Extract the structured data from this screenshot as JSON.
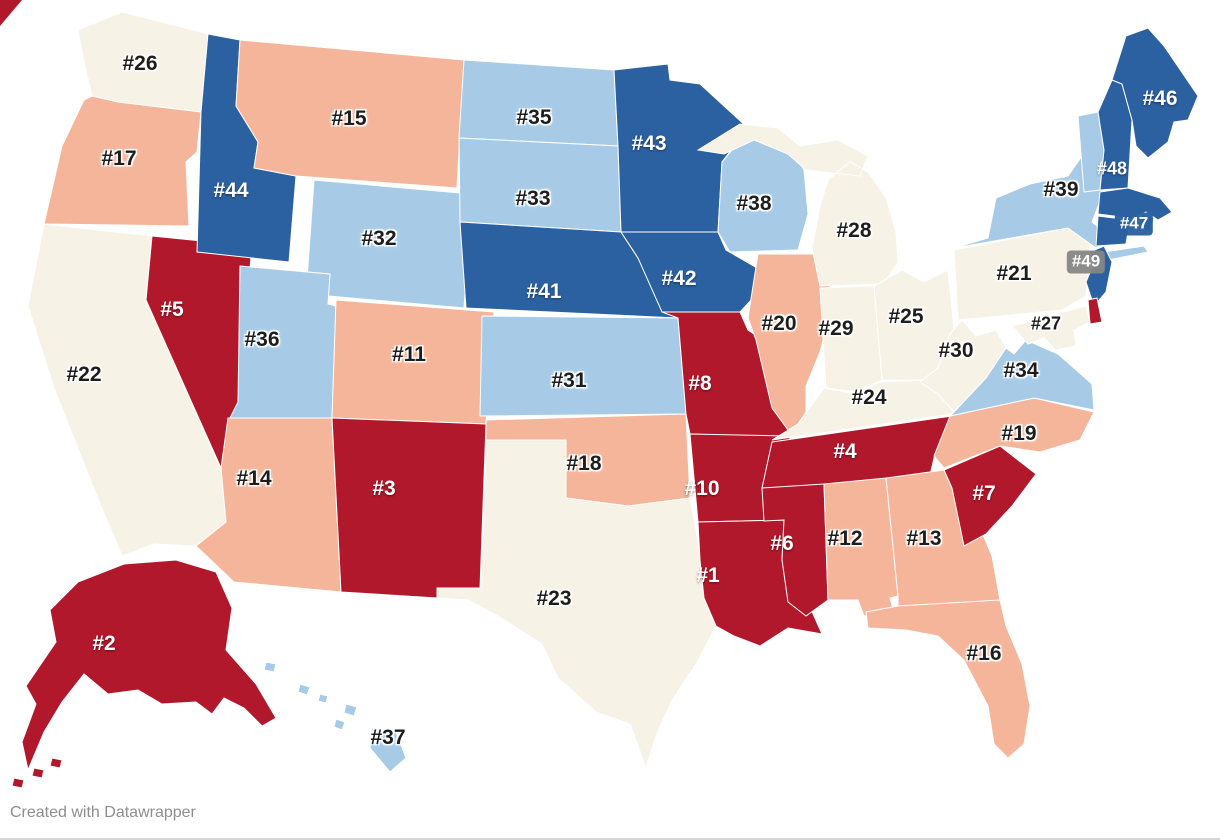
{
  "map": {
    "type": "choropleth-us-states",
    "palette": {
      "dark_red": "#b2182b",
      "salmon": "#f5b59a",
      "cream": "#f7f2e6",
      "light_blue": "#a7cbe7",
      "dark_blue": "#2c61a1",
      "border": "#ffffff",
      "label_dark": "#1d1d1d",
      "label_light": "#ffffff"
    },
    "states": [
      {
        "id": "WA",
        "name": "Washington",
        "label": "#26",
        "band": "cream"
      },
      {
        "id": "OR",
        "name": "Oregon",
        "label": "#17",
        "band": "salmon"
      },
      {
        "id": "CA",
        "name": "California",
        "label": "#22",
        "band": "cream"
      },
      {
        "id": "NV",
        "name": "Nevada",
        "label": "#5",
        "band": "dark_red"
      },
      {
        "id": "ID",
        "name": "Idaho",
        "label": "#44",
        "band": "dark_blue"
      },
      {
        "id": "MT",
        "name": "Montana",
        "label": "#15",
        "band": "salmon"
      },
      {
        "id": "WY",
        "name": "Wyoming",
        "label": "#32",
        "band": "light_blue"
      },
      {
        "id": "UT",
        "name": "Utah",
        "label": "#36",
        "band": "light_blue"
      },
      {
        "id": "CO",
        "name": "Colorado",
        "label": "#11",
        "band": "salmon"
      },
      {
        "id": "AZ",
        "name": "Arizona",
        "label": "#14",
        "band": "salmon"
      },
      {
        "id": "NM",
        "name": "New Mexico",
        "label": "#3",
        "band": "dark_red"
      },
      {
        "id": "ND",
        "name": "North Dakota",
        "label": "#35",
        "band": "light_blue"
      },
      {
        "id": "SD",
        "name": "South Dakota",
        "label": "#33",
        "band": "light_blue"
      },
      {
        "id": "NE",
        "name": "Nebraska",
        "label": "#41",
        "band": "dark_blue"
      },
      {
        "id": "KS",
        "name": "Kansas",
        "label": "#31",
        "band": "light_blue"
      },
      {
        "id": "OK",
        "name": "Oklahoma",
        "label": "#18",
        "band": "salmon"
      },
      {
        "id": "TX",
        "name": "Texas",
        "label": "#23",
        "band": "cream"
      },
      {
        "id": "MN",
        "name": "Minnesota",
        "label": "#43",
        "band": "dark_blue"
      },
      {
        "id": "IA",
        "name": "Iowa",
        "label": "#42",
        "band": "dark_blue"
      },
      {
        "id": "MO",
        "name": "Missouri",
        "label": "#8",
        "band": "dark_red"
      },
      {
        "id": "AR",
        "name": "Arkansas",
        "label": "#10",
        "band": "dark_red"
      },
      {
        "id": "LA",
        "name": "Louisiana",
        "label": "#1",
        "band": "dark_red"
      },
      {
        "id": "WI",
        "name": "Wisconsin",
        "label": "#38",
        "band": "light_blue"
      },
      {
        "id": "IL",
        "name": "Illinois",
        "label": "#20",
        "band": "salmon"
      },
      {
        "id": "MI",
        "name": "Michigan",
        "label": "#28",
        "band": "cream"
      },
      {
        "id": "IN",
        "name": "Indiana",
        "label": "#29",
        "band": "cream"
      },
      {
        "id": "OH",
        "name": "Ohio",
        "label": "#25",
        "band": "cream"
      },
      {
        "id": "KY",
        "name": "Kentucky",
        "label": "#24",
        "band": "cream"
      },
      {
        "id": "TN",
        "name": "Tennessee",
        "label": "#4",
        "band": "dark_red"
      },
      {
        "id": "MS",
        "name": "Mississippi",
        "label": "#6",
        "band": "dark_red"
      },
      {
        "id": "AL",
        "name": "Alabama",
        "label": "#12",
        "band": "salmon"
      },
      {
        "id": "GA",
        "name": "Georgia",
        "label": "#13",
        "band": "salmon"
      },
      {
        "id": "FL",
        "name": "Florida",
        "label": "#16",
        "band": "salmon"
      },
      {
        "id": "SC",
        "name": "South Carolina",
        "label": "#7",
        "band": "dark_red"
      },
      {
        "id": "NC",
        "name": "North Carolina",
        "label": "#19",
        "band": "salmon"
      },
      {
        "id": "WV",
        "name": "West Virginia",
        "label": "#30",
        "band": "cream"
      },
      {
        "id": "VA",
        "name": "Virginia",
        "label": "#34",
        "band": "light_blue"
      },
      {
        "id": "PA",
        "name": "Pennsylvania",
        "label": "#21",
        "band": "cream"
      },
      {
        "id": "NY",
        "name": "New York",
        "label": "#39",
        "band": "light_blue"
      },
      {
        "id": "NJ",
        "name": "New Jersey",
        "label": "",
        "band": "dark_blue"
      },
      {
        "id": "DE",
        "name": "Delaware",
        "label": "",
        "band": "dark_red"
      },
      {
        "id": "MD",
        "name": "Maryland",
        "label": "#27",
        "band": "cream"
      },
      {
        "id": "VT",
        "name": "Vermont",
        "label": "",
        "band": "light_blue"
      },
      {
        "id": "NH",
        "name": "New Hampshire",
        "label": "#48",
        "band": "dark_blue"
      },
      {
        "id": "ME",
        "name": "Maine",
        "label": "#46",
        "band": "dark_blue"
      },
      {
        "id": "MA",
        "name": "Massachusetts",
        "label": "#47",
        "band": "dark_blue"
      },
      {
        "id": "RI",
        "name": "Rhode Island",
        "label": "",
        "band": "dark_blue"
      },
      {
        "id": "CT",
        "name": "Connecticut",
        "label": "#49",
        "band": "dark_blue"
      },
      {
        "id": "AK",
        "name": "Alaska",
        "label": "#2",
        "band": "dark_red"
      },
      {
        "id": "HI",
        "name": "Hawaii",
        "label": "#37",
        "band": "light_blue"
      }
    ]
  },
  "footer": {
    "credit": "Created with Datawrapper"
  }
}
